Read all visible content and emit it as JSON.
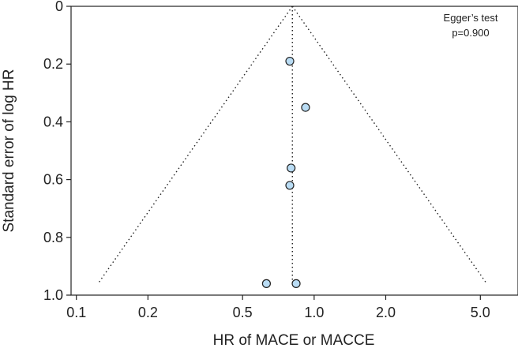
{
  "chart_data": {
    "type": "scatter",
    "title": "",
    "xlabel": "HR of MACE or MACCE",
    "ylabel": "Standard error of log HR",
    "x_scale": "log",
    "x_ticks": [
      {
        "value": 0.1,
        "label": "0.1"
      },
      {
        "value": 0.2,
        "label": "0.2"
      },
      {
        "value": 0.5,
        "label": "0.5"
      },
      {
        "value": 1.0,
        "label": "1.0"
      },
      {
        "value": 2.0,
        "label": "2.0"
      },
      {
        "value": 5.0,
        "label": "5.0"
      }
    ],
    "y_ticks": [
      {
        "value": 0,
        "label": "0"
      },
      {
        "value": 0.2,
        "label": "0.2"
      },
      {
        "value": 0.4,
        "label": "0.4"
      },
      {
        "value": 0.6,
        "label": "0.6"
      },
      {
        "value": 0.8,
        "label": "0.8"
      },
      {
        "value": 1.0,
        "label": "1.0"
      }
    ],
    "xlim": [
      0.095,
      7.2
    ],
    "ylim": [
      0,
      1.0
    ],
    "y_inverted": true,
    "grid": false,
    "pooled_estimate": 0.81,
    "funnel_limits": {
      "se_max": 0.96
    },
    "points": [
      {
        "x": 0.79,
        "y": 0.19
      },
      {
        "x": 0.92,
        "y": 0.35
      },
      {
        "x": 0.8,
        "y": 0.56
      },
      {
        "x": 0.79,
        "y": 0.62
      },
      {
        "x": 0.63,
        "y": 0.96
      },
      {
        "x": 0.84,
        "y": 0.96
      }
    ],
    "annotation": {
      "line1": "Egger’s test",
      "line2": "p=0.900",
      "position": "top-right"
    },
    "colors": {
      "marker_fill": "#b9dcf4",
      "marker_stroke": "#222222",
      "line": "#222222"
    }
  }
}
